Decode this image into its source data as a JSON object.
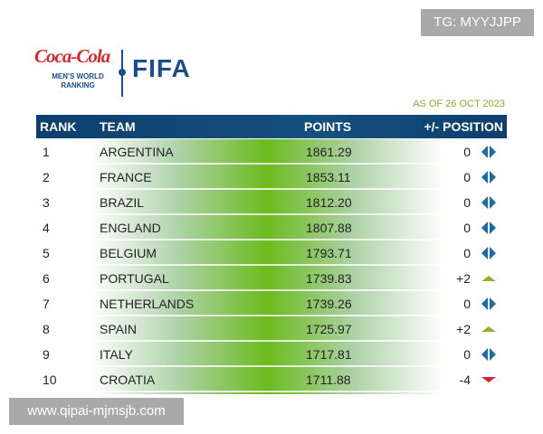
{
  "watermarks": {
    "top": "TG: MYYJJPP",
    "bottom": "www.qipai-mjmsjb.com"
  },
  "logo": {
    "brand": "Coca-Cola",
    "subtitle_line1": "MEN'S WORLD",
    "subtitle_line2": "RANKING",
    "org": "FIFA"
  },
  "as_of": "AS OF 26 OCT 2023",
  "headers": {
    "rank": "RANK",
    "team": "TEAM",
    "points": "POINTS",
    "position": "+/- POSITION"
  },
  "colors": {
    "header": "#0d3f6e",
    "up": "#8db52a",
    "down": "#d22630",
    "same": "#1a6fa0"
  },
  "rows": [
    {
      "rank": "1",
      "team": "ARGENTINA",
      "points": "1861.29",
      "change": "0",
      "trend": "same"
    },
    {
      "rank": "2",
      "team": "FRANCE",
      "points": "1853.11",
      "change": "0",
      "trend": "same"
    },
    {
      "rank": "3",
      "team": "BRAZIL",
      "points": "1812.20",
      "change": "0",
      "trend": "same"
    },
    {
      "rank": "4",
      "team": "ENGLAND",
      "points": "1807.88",
      "change": "0",
      "trend": "same"
    },
    {
      "rank": "5",
      "team": "BELGIUM",
      "points": "1793.71",
      "change": "0",
      "trend": "same"
    },
    {
      "rank": "6",
      "team": "PORTUGAL",
      "points": "1739.83",
      "change": "+2",
      "trend": "up"
    },
    {
      "rank": "7",
      "team": "NETHERLANDS",
      "points": "1739.26",
      "change": "0",
      "trend": "same"
    },
    {
      "rank": "8",
      "team": "SPAIN",
      "points": "1725.97",
      "change": "+2",
      "trend": "up"
    },
    {
      "rank": "9",
      "team": "ITALY",
      "points": "1717.81",
      "change": "0",
      "trend": "same"
    },
    {
      "rank": "10",
      "team": "CROATIA",
      "points": "1711.88",
      "change": "-4",
      "trend": "down"
    }
  ]
}
